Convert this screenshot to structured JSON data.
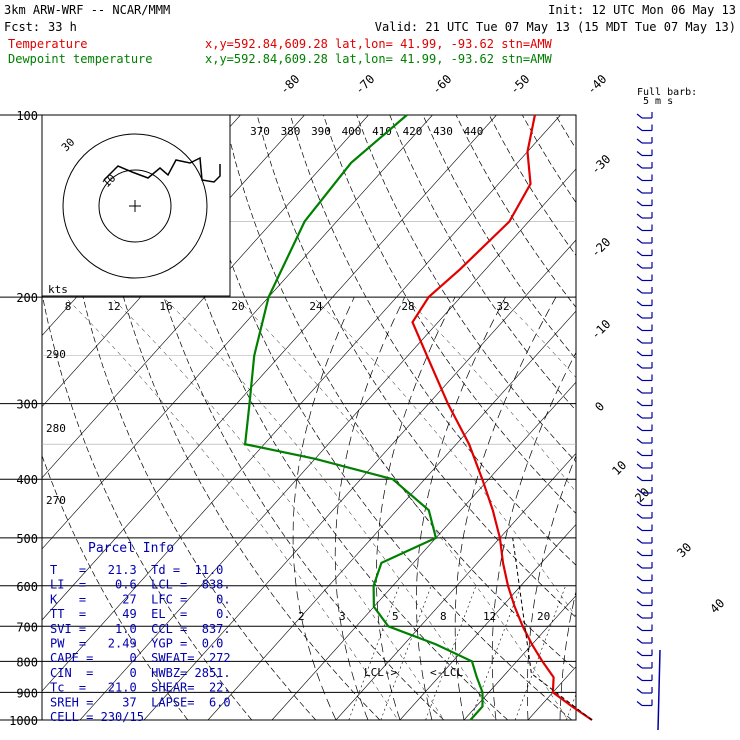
{
  "header": {
    "model": "3km ARW-WRF -- NCAR/MMM",
    "init": "Init: 12 UTC Mon 06 May 13",
    "fcst_label": "Fcst:",
    "fcst_value": "33 h",
    "valid": "Valid: 21 UTC Tue 07 May 13 (15 MDT Tue 07 May 13)",
    "temp_label": "Temperature",
    "dew_label": "Dewpoint temperature",
    "location": "x,y=592.84,609.28   lat,lon= 41.99, -93.62  stn=AMW"
  },
  "colors": {
    "temperature": "#e00000",
    "dewpoint": "#008000",
    "parcel": "#000000",
    "panel_text": "#0000b0",
    "barb": "#0000a0"
  },
  "chart_data": {
    "type": "line",
    "diagram": "skew-T log-p",
    "pressure_levels": [
      100,
      200,
      300,
      400,
      500,
      600,
      700,
      800,
      900,
      1000
    ],
    "pressure_range": [
      1000,
      100
    ],
    "skewed_isotherm_labels": [
      "-80",
      "-70",
      "-60",
      "-50",
      "-40",
      "-30",
      "-20",
      "-10",
      "0",
      "10",
      "20",
      "30",
      "40"
    ],
    "theta_labels": [
      "370",
      "380",
      "390",
      "400",
      "410",
      "420",
      "430",
      "440"
    ],
    "theta_left_labels": [
      "290",
      "280",
      "270"
    ],
    "mixing_ratio_labels": [
      "2",
      "3",
      "5",
      "8",
      "12",
      "20"
    ],
    "series": [
      {
        "name": "Temperature",
        "values": [
          {
            "p": 1000,
            "t": 30
          },
          {
            "p": 950,
            "t": 25
          },
          {
            "p": 900,
            "t": 20
          },
          {
            "p": 850,
            "t": 18
          },
          {
            "p": 800,
            "t": 14
          },
          {
            "p": 750,
            "t": 10
          },
          {
            "p": 700,
            "t": 6
          },
          {
            "p": 650,
            "t": 2
          },
          {
            "p": 600,
            "t": -2
          },
          {
            "p": 550,
            "t": -6
          },
          {
            "p": 500,
            "t": -10
          },
          {
            "p": 450,
            "t": -15
          },
          {
            "p": 400,
            "t": -21
          },
          {
            "p": 350,
            "t": -28
          },
          {
            "p": 300,
            "t": -37
          },
          {
            "p": 250,
            "t": -47
          },
          {
            "p": 220,
            "t": -54
          },
          {
            "p": 200,
            "t": -55
          },
          {
            "p": 180,
            "t": -54
          },
          {
            "p": 150,
            "t": -53
          },
          {
            "p": 130,
            "t": -55
          },
          {
            "p": 115,
            "t": -60
          },
          {
            "p": 100,
            "t": -64
          }
        ]
      },
      {
        "name": "Dewpoint temperature",
        "values": [
          {
            "p": 1000,
            "t": 11
          },
          {
            "p": 950,
            "t": 11
          },
          {
            "p": 900,
            "t": 9
          },
          {
            "p": 850,
            "t": 6
          },
          {
            "p": 800,
            "t": 3
          },
          {
            "p": 750,
            "t": -5
          },
          {
            "p": 700,
            "t": -15
          },
          {
            "p": 650,
            "t": -20
          },
          {
            "p": 600,
            "t": -23
          },
          {
            "p": 550,
            "t": -25
          },
          {
            "p": 500,
            "t": -20
          },
          {
            "p": 450,
            "t": -25
          },
          {
            "p": 400,
            "t": -35
          },
          {
            "p": 370,
            "t": -50
          },
          {
            "p": 350,
            "t": -63
          },
          {
            "p": 300,
            "t": -68
          },
          {
            "p": 250,
            "t": -74
          },
          {
            "p": 200,
            "t": -80
          },
          {
            "p": 150,
            "t": -85
          },
          {
            "p": 120,
            "t": -86
          },
          {
            "p": 100,
            "t": -84
          }
        ]
      }
    ],
    "annotations": [
      "LCL->",
      "<-LCL"
    ],
    "wind_speeds_kts": [
      4,
      8,
      12,
      16,
      20,
      24,
      28,
      32
    ],
    "hodograph_labels": {
      "units": "kts",
      "ring_labels": [
        "30",
        "10"
      ]
    },
    "barb_key": "Full barb:\n5 m s-1"
  },
  "parcel_info": {
    "title": "Parcel Info",
    "rows": [
      "T   =   21.3  Td =  11.0",
      "LI  =    0.6  LCL =  838.",
      "K   =     27  LFC =    0.",
      "TT  =     49  EL  =    0.",
      "SVI =    1.0  CCL =  837.",
      "PW  =   2.49  YGP =  0.0",
      "CAPE =     0  SWEAT=  272",
      "CIN  =     0  HWBZ= 2851.",
      "Tc  =   21.0  SHEAR=  22.",
      "SREH =    37  LAPSE=  6.0",
      "CELL = 230/15"
    ]
  }
}
